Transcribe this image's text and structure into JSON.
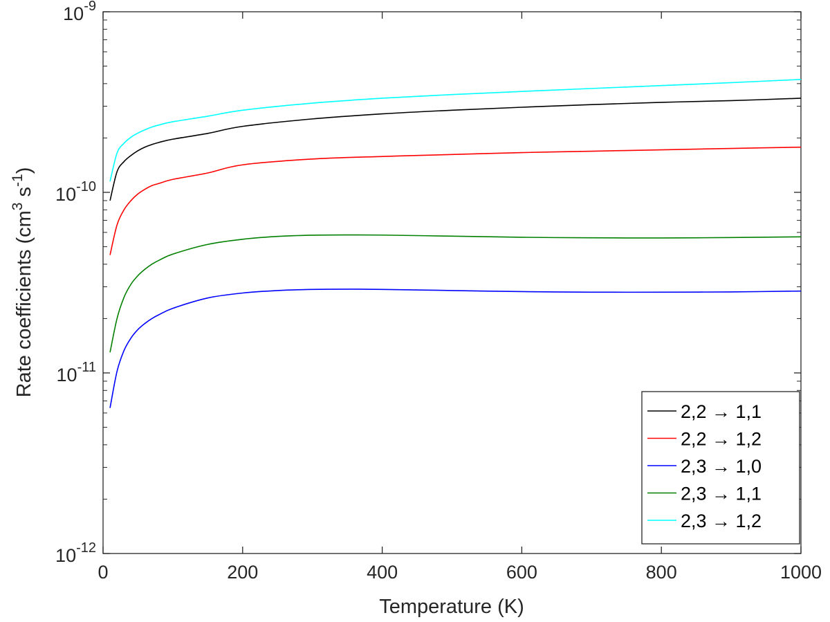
{
  "chart_data": {
    "type": "line",
    "xlabel": "Temperature (K)",
    "ylabel": {
      "base": "Rate coefficients (cm",
      "sup1": "3",
      "mid": " s",
      "sup2": "-1",
      "end": ")"
    },
    "xlim": [
      0,
      1000
    ],
    "ylim": [
      1e-12,
      1e-09
    ],
    "yscale": "log",
    "x_ticks": [
      0,
      200,
      400,
      600,
      800,
      1000
    ],
    "x_tick_labels": [
      "0",
      "200",
      "400",
      "600",
      "800",
      "1000"
    ],
    "y_ticks": [
      1e-12,
      1e-11,
      1e-10,
      1e-09
    ],
    "y_tick_labels": [
      {
        "base": "10",
        "exp": "-12"
      },
      {
        "base": "10",
        "exp": "-11"
      },
      {
        "base": "10",
        "exp": "-10"
      },
      {
        "base": "10",
        "exp": "-9"
      }
    ],
    "grid": false,
    "legend_position": "bottom-right",
    "series": [
      {
        "name": "2,2 → 1,1",
        "color": "#000000",
        "x": [
          10,
          20,
          30,
          40,
          50,
          60,
          70,
          80,
          100,
          150,
          200,
          300,
          400,
          500,
          600,
          700,
          800,
          900,
          1000
        ],
        "y": [
          9e-11,
          1.3e-10,
          1.48e-10,
          1.6e-10,
          1.7e-10,
          1.78e-10,
          1.84e-10,
          1.89e-10,
          1.97e-10,
          2.12e-10,
          2.32e-10,
          2.55e-10,
          2.72e-10,
          2.85e-10,
          2.96e-10,
          3.06e-10,
          3.15e-10,
          3.22e-10,
          3.32e-10
        ]
      },
      {
        "name": "2,2 → 1,2",
        "color": "#ff0000",
        "x": [
          10,
          20,
          30,
          40,
          50,
          60,
          70,
          80,
          100,
          150,
          200,
          300,
          400,
          500,
          600,
          700,
          800,
          900,
          1000
        ],
        "y": [
          4.5e-11,
          6.6e-11,
          8e-11,
          9e-11,
          9.8e-11,
          1.04e-10,
          1.09e-10,
          1.12e-10,
          1.18e-10,
          1.28e-10,
          1.42e-10,
          1.53e-10,
          1.58e-10,
          1.62e-10,
          1.66e-10,
          1.69e-10,
          1.72e-10,
          1.75e-10,
          1.78e-10
        ]
      },
      {
        "name": "2,3 → 1,0",
        "color": "#0000ff",
        "x": [
          10,
          20,
          30,
          40,
          50,
          60,
          70,
          80,
          100,
          150,
          200,
          250,
          300,
          350,
          400,
          500,
          600,
          700,
          800,
          900,
          1000
        ],
        "y": [
          6.4e-12,
          1.02e-11,
          1.33e-11,
          1.56e-11,
          1.74e-11,
          1.88e-11,
          2e-11,
          2.1e-11,
          2.28e-11,
          2.6e-11,
          2.77e-11,
          2.86e-11,
          2.9e-11,
          2.91e-11,
          2.9e-11,
          2.86e-11,
          2.82e-11,
          2.8e-11,
          2.8e-11,
          2.81e-11,
          2.84e-11
        ]
      },
      {
        "name": "2,3 → 1,1",
        "color": "#008000",
        "x": [
          10,
          20,
          30,
          40,
          50,
          60,
          70,
          80,
          100,
          150,
          200,
          250,
          300,
          350,
          400,
          500,
          600,
          700,
          800,
          900,
          1000
        ],
        "y": [
          1.3e-11,
          2e-11,
          2.62e-11,
          3.1e-11,
          3.46e-11,
          3.75e-11,
          4e-11,
          4.2e-11,
          4.55e-11,
          5.15e-11,
          5.5e-11,
          5.7e-11,
          5.79e-11,
          5.81e-11,
          5.8e-11,
          5.72e-11,
          5.64e-11,
          5.6e-11,
          5.59e-11,
          5.62e-11,
          5.67e-11
        ]
      },
      {
        "name": "2,3 → 1,2",
        "color": "#00ffff",
        "x": [
          10,
          20,
          30,
          40,
          50,
          60,
          70,
          80,
          100,
          150,
          200,
          300,
          400,
          500,
          600,
          700,
          800,
          900,
          1000
        ],
        "y": [
          1.15e-10,
          1.65e-10,
          1.87e-10,
          2.02e-10,
          2.13e-10,
          2.22e-10,
          2.3e-10,
          2.36e-10,
          2.46e-10,
          2.64e-10,
          2.85e-10,
          3.12e-10,
          3.32e-10,
          3.48e-10,
          3.62e-10,
          3.76e-10,
          3.9e-10,
          4.05e-10,
          4.22e-10
        ]
      }
    ]
  }
}
